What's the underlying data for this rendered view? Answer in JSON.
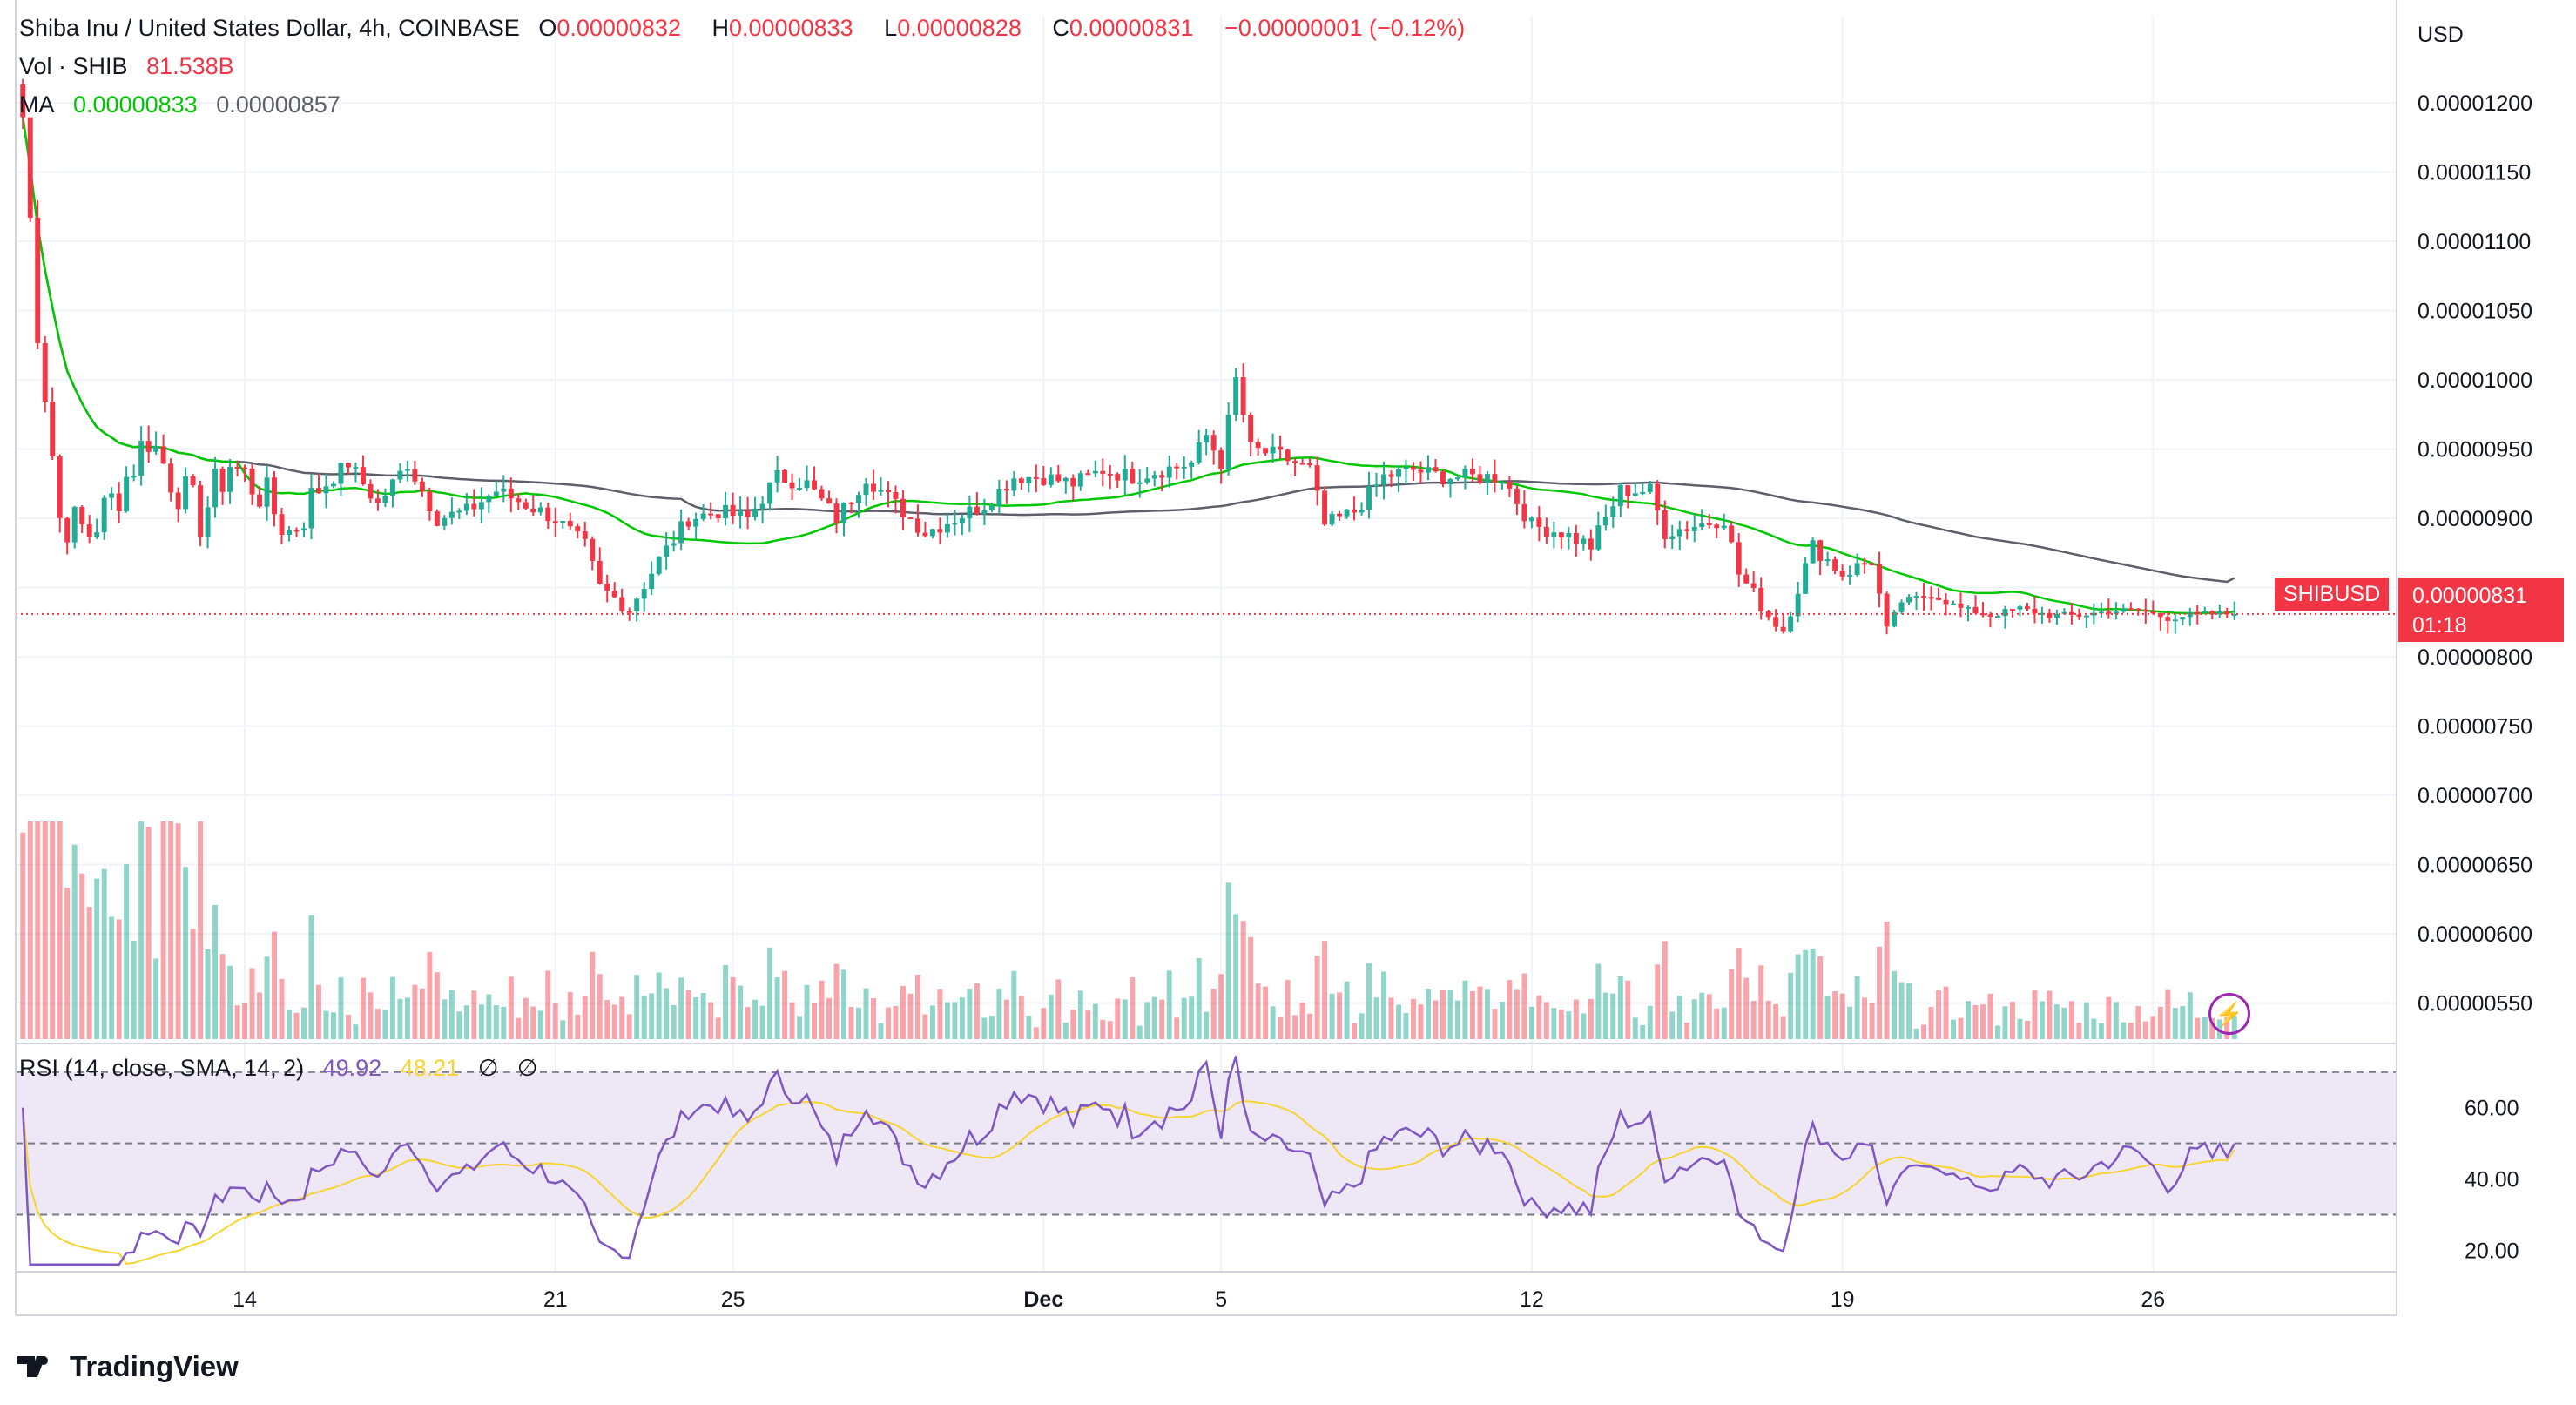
{
  "header": {
    "symbol": "Shiba Inu / United States Dollar, 4h, COINBASE",
    "o_label": "O",
    "o": "0.00000832",
    "h_label": "H",
    "h": "0.00000833",
    "l_label": "L",
    "l": "0.00000828",
    "c_label": "C",
    "c": "0.00000831",
    "change": "−0.00000001 (−0.12%)"
  },
  "vol_legend": {
    "label": "Vol · SHIB",
    "value": "81.538B"
  },
  "ma_legend": {
    "label": "MA",
    "fast": "0.00000833",
    "slow": "0.00000857"
  },
  "rsi_legend": {
    "label": "RSI (14, close, SMA, 14, 2)",
    "rsi": "49.92",
    "sma": "48.21",
    "sym1": "∅",
    "sym2": "∅"
  },
  "price_tag": {
    "symbol": "SHIBUSD",
    "price": "0.00000831",
    "countdown": "01:18"
  },
  "currency": "USD",
  "brand": "TradingView",
  "colors": {
    "up": "#22ab94",
    "down": "#f23645",
    "ma_fast": "#00c800",
    "ma_slow": "#5d606b",
    "rsi": "#7e57c2",
    "rsi_sma": "#f7d431",
    "rsi_band": "#ede7f6"
  },
  "chart_data": [
    {
      "type": "candlestick",
      "title": "Shiba Inu / United States Dollar, 4h, COINBASE",
      "y_axis": {
        "ticks": [
          5.5e-06,
          6e-06,
          6.5e-06,
          7e-06,
          7.5e-06,
          8e-06,
          8.5e-06,
          9e-06,
          9.5e-06,
          1e-05,
          1.05e-05,
          1.1e-05,
          1.15e-05,
          1.2e-05
        ],
        "tick_labels": [
          "0.00000550",
          "0.00000600",
          "0.00000650",
          "0.00000700",
          "0.00000750",
          "0.00000800",
          "0.00000850",
          "0.00000900",
          "0.00000950",
          "0.00001000",
          "0.00001050",
          "0.00001100",
          "0.00001150",
          "0.00001200"
        ],
        "range": [
          5.24e-06,
          1.263e-05
        ],
        "unit": "USD"
      },
      "x_axis": {
        "tick_labels": [
          "14",
          "21",
          "25",
          "Dec",
          "5",
          "12",
          "19",
          "26"
        ],
        "tick_candle_index": [
          30,
          72,
          96,
          138,
          162,
          204,
          246,
          288
        ]
      },
      "close_anchors": [
        [
          0,
          11.9
        ],
        [
          2,
          10.4
        ],
        [
          5,
          9.0
        ],
        [
          9,
          8.9
        ],
        [
          13,
          9.2
        ],
        [
          17,
          9.6
        ],
        [
          20,
          9.3
        ],
        [
          24,
          9.0
        ],
        [
          28,
          9.4
        ],
        [
          32,
          9.2
        ],
        [
          36,
          8.9
        ],
        [
          40,
          9.2
        ],
        [
          44,
          9.4
        ],
        [
          48,
          9.1
        ],
        [
          52,
          9.4
        ],
        [
          56,
          9.0
        ],
        [
          60,
          9.05
        ],
        [
          64,
          9.2
        ],
        [
          68,
          9.1
        ],
        [
          72,
          9.0
        ],
        [
          76,
          8.8
        ],
        [
          78,
          8.5
        ],
        [
          82,
          8.35
        ],
        [
          86,
          8.7
        ],
        [
          90,
          9.0
        ],
        [
          94,
          9.05
        ],
        [
          98,
          9.0
        ],
        [
          102,
          9.3
        ],
        [
          106,
          9.25
        ],
        [
          110,
          9.0
        ],
        [
          114,
          9.3
        ],
        [
          118,
          9.1
        ],
        [
          122,
          8.9
        ],
        [
          126,
          9.0
        ],
        [
          130,
          9.1
        ],
        [
          134,
          9.3
        ],
        [
          138,
          9.3
        ],
        [
          142,
          9.25
        ],
        [
          146,
          9.35
        ],
        [
          150,
          9.3
        ],
        [
          154,
          9.35
        ],
        [
          158,
          9.4
        ],
        [
          160,
          9.6
        ],
        [
          162,
          9.4
        ],
        [
          164,
          10.0
        ],
        [
          166,
          9.5
        ],
        [
          170,
          9.45
        ],
        [
          174,
          9.35
        ],
        [
          176,
          8.95
        ],
        [
          180,
          9.05
        ],
        [
          184,
          9.3
        ],
        [
          188,
          9.35
        ],
        [
          192,
          9.3
        ],
        [
          196,
          9.3
        ],
        [
          200,
          9.3
        ],
        [
          204,
          8.95
        ],
        [
          208,
          8.9
        ],
        [
          212,
          8.8
        ],
        [
          216,
          9.2
        ],
        [
          220,
          9.2
        ],
        [
          222,
          8.9
        ],
        [
          226,
          8.95
        ],
        [
          230,
          9.0
        ],
        [
          232,
          8.6
        ],
        [
          236,
          8.3
        ],
        [
          238,
          8.2
        ],
        [
          240,
          8.5
        ],
        [
          242,
          8.8
        ],
        [
          246,
          8.6
        ],
        [
          250,
          8.7
        ],
        [
          252,
          8.2
        ],
        [
          254,
          8.4
        ],
        [
          258,
          8.45
        ],
        [
          262,
          8.35
        ],
        [
          266,
          8.3
        ],
        [
          270,
          8.35
        ],
        [
          274,
          8.3
        ],
        [
          278,
          8.3
        ],
        [
          282,
          8.33
        ],
        [
          286,
          8.34
        ],
        [
          290,
          8.28
        ],
        [
          294,
          8.31
        ],
        [
          297,
          8.31
        ]
      ],
      "close_scale": "0.000001",
      "last_close": 8.31e-06,
      "ma_fast_last": 8.33e-06,
      "ma_slow_last": 8.57e-06,
      "volume_last": "81.538B"
    },
    {
      "type": "line",
      "title": "RSI (14, close, SMA, 14, 2)",
      "y_axis": {
        "ticks": [
          20,
          40,
          60
        ],
        "tick_labels": [
          "20.00",
          "40.00",
          "60.00"
        ],
        "range": [
          14,
          78
        ],
        "bands": [
          30,
          50,
          70
        ]
      },
      "series": [
        {
          "name": "RSI",
          "last": 49.92
        },
        {
          "name": "SMA",
          "last": 48.21
        }
      ]
    }
  ]
}
